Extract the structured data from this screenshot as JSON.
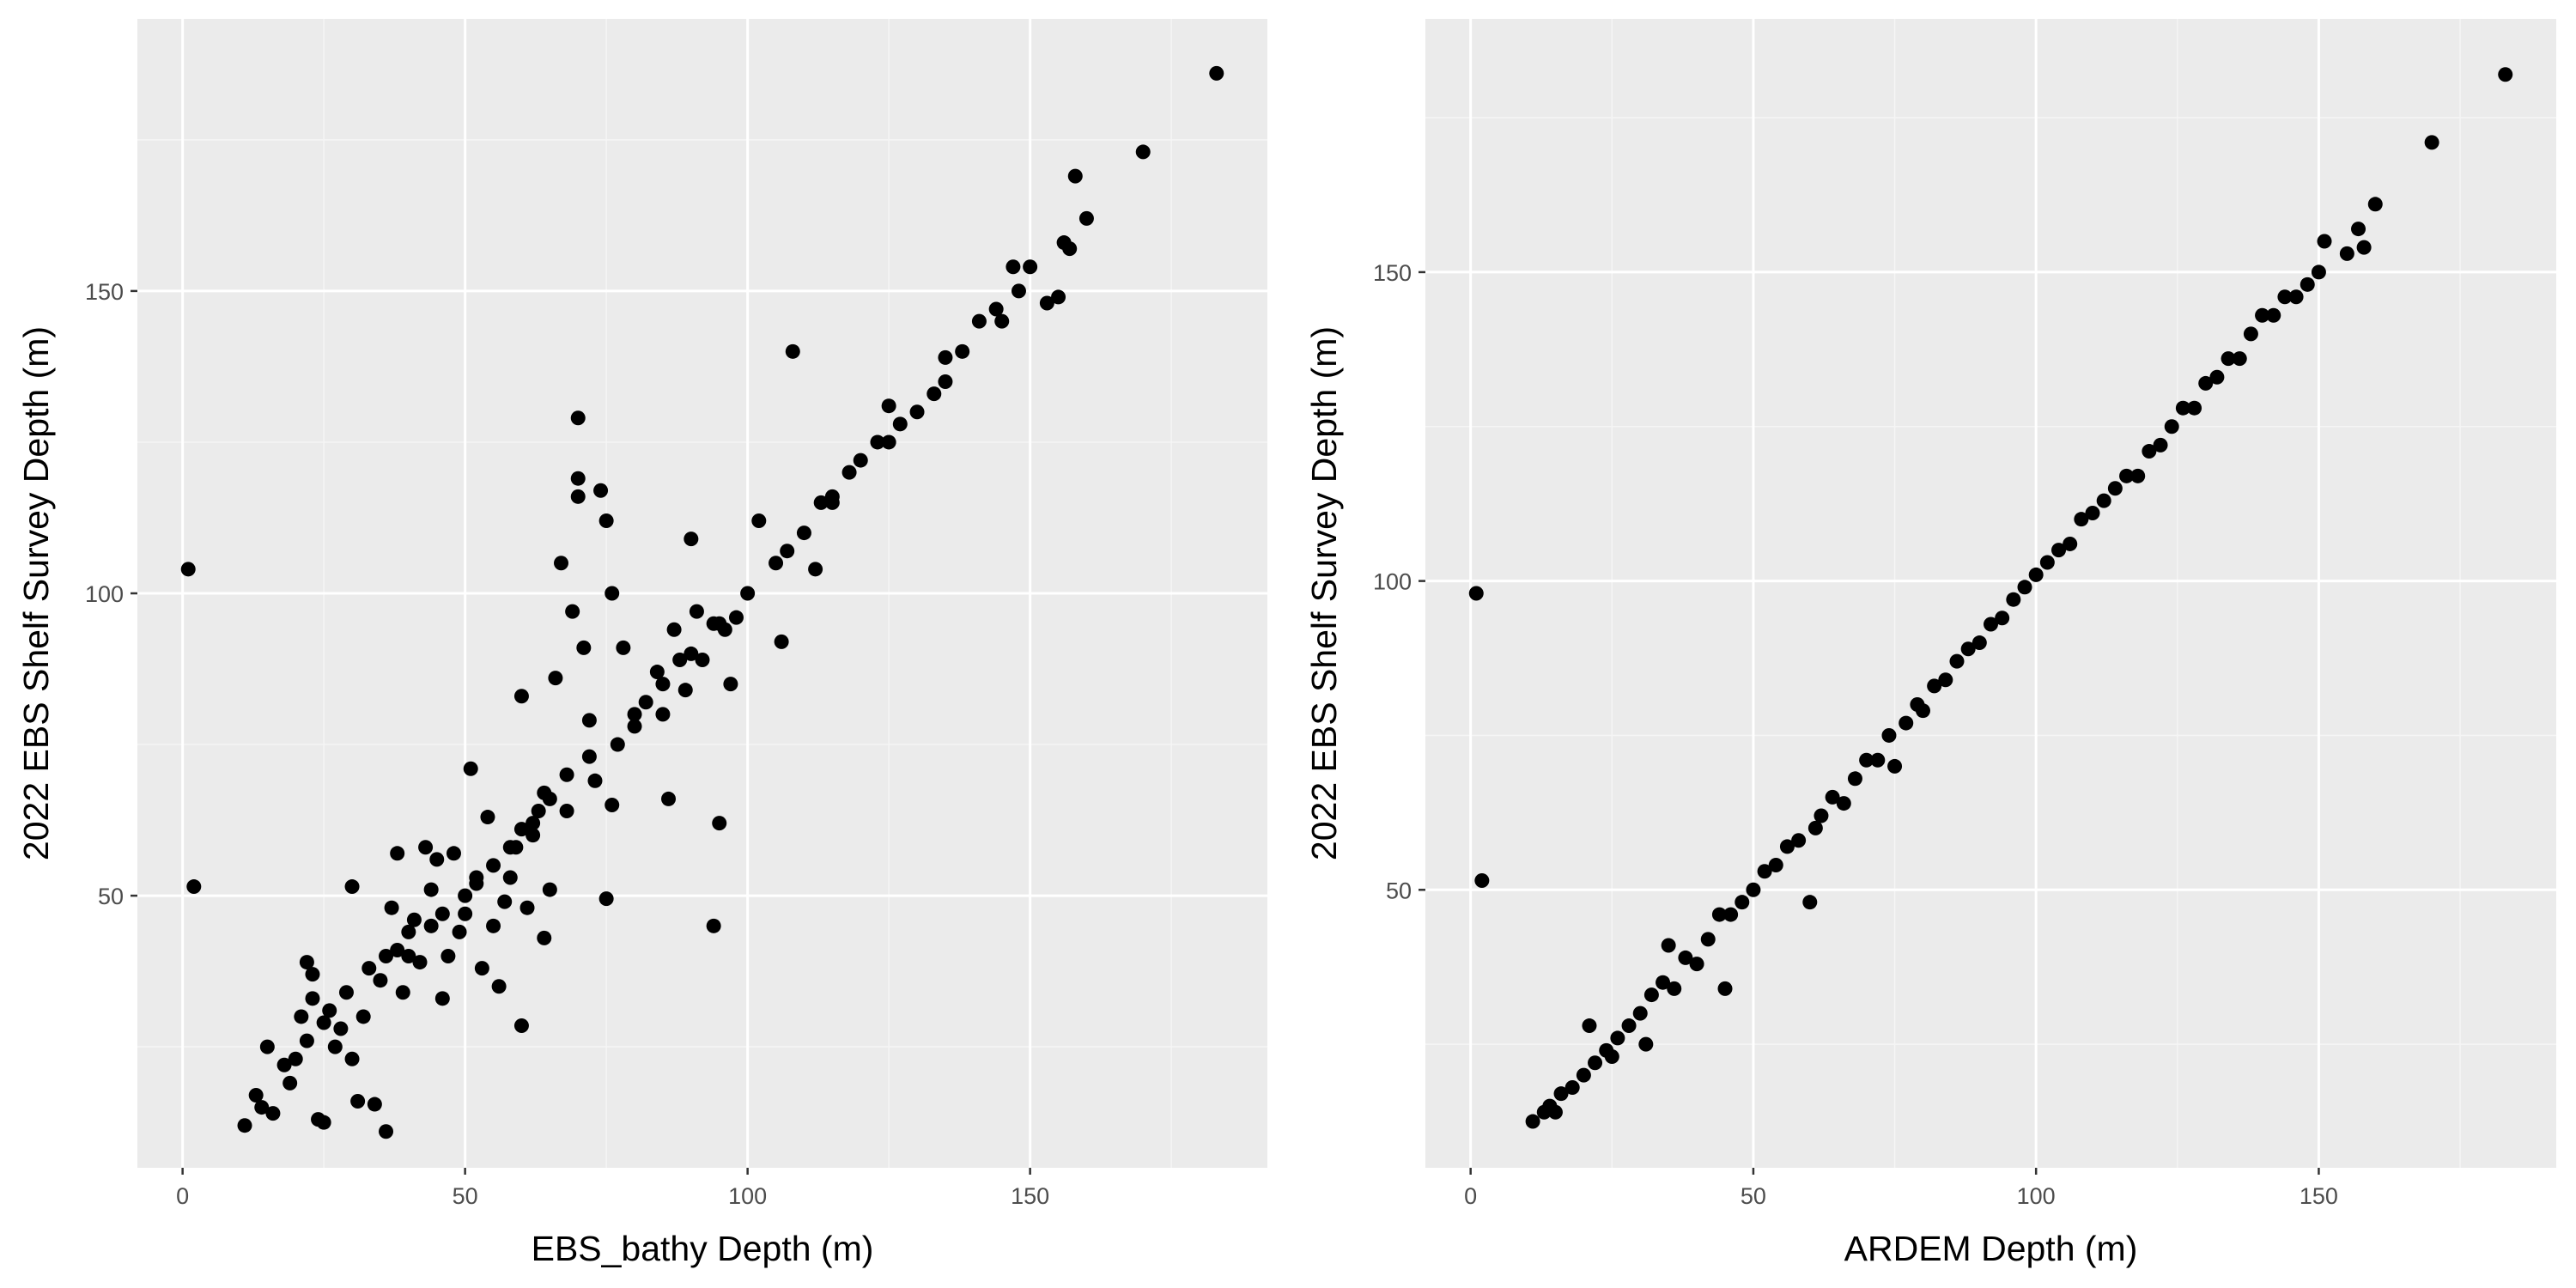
{
  "colors": {
    "panel_bg": "#EBEBEB",
    "grid_major": "#FFFFFF",
    "grid_minor": "#F5F5F5",
    "point": "#000000",
    "tick_text": "#4D4D4D",
    "axis_title": "#000000"
  },
  "chart_data": [
    {
      "type": "scatter",
      "title": "",
      "xlabel": "EBS_bathy Depth (m)",
      "ylabel": "2022 EBS Shelf Survey Depth (m)",
      "xlim": [
        -8,
        192
      ],
      "ylim": [
        5,
        195
      ],
      "x_ticks": [
        0,
        50,
        100,
        150
      ],
      "x_tick_labels": [
        "0",
        "50",
        "100",
        "150"
      ],
      "y_ticks": [
        50,
        100,
        150
      ],
      "y_tick_labels": [
        "50",
        "100",
        "150"
      ],
      "grid": true,
      "legend": "none",
      "series": [
        {
          "points": [
            [
              1,
              104
            ],
            [
              2,
              51.5
            ],
            [
              11,
              12
            ],
            [
              13,
              17
            ],
            [
              14,
              15
            ],
            [
              15,
              25
            ],
            [
              16,
              14
            ],
            [
              18,
              22
            ],
            [
              19,
              19
            ],
            [
              20,
              23
            ],
            [
              21,
              30
            ],
            [
              22,
              39
            ],
            [
              22,
              26
            ],
            [
              23,
              37
            ],
            [
              23,
              33
            ],
            [
              24,
              13
            ],
            [
              25,
              12.5
            ],
            [
              25,
              29
            ],
            [
              26,
              31
            ],
            [
              27,
              25
            ],
            [
              28,
              28
            ],
            [
              29,
              34
            ],
            [
              30,
              23
            ],
            [
              30,
              51.5
            ],
            [
              31,
              16
            ],
            [
              32,
              30
            ],
            [
              33,
              38
            ],
            [
              34,
              15.5
            ],
            [
              35,
              36
            ],
            [
              36,
              11
            ],
            [
              37,
              48
            ],
            [
              38,
              41
            ],
            [
              38,
              57
            ],
            [
              39,
              34
            ],
            [
              40,
              44
            ],
            [
              41,
              46
            ],
            [
              42,
              39
            ],
            [
              43,
              58
            ],
            [
              44,
              51
            ],
            [
              45,
              56
            ],
            [
              46,
              33
            ],
            [
              47,
              40
            ],
            [
              48,
              57
            ],
            [
              49,
              44
            ],
            [
              50,
              47
            ],
            [
              51,
              71
            ],
            [
              52,
              52
            ],
            [
              53,
              38
            ],
            [
              54,
              63
            ],
            [
              55,
              45
            ],
            [
              56,
              35
            ],
            [
              57,
              49
            ],
            [
              58,
              53
            ],
            [
              59,
              58
            ],
            [
              60,
              28.5
            ],
            [
              60,
              83
            ],
            [
              61,
              48
            ],
            [
              62,
              60
            ],
            [
              63,
              64
            ],
            [
              64,
              67
            ],
            [
              64,
              43
            ],
            [
              65,
              51
            ],
            [
              66,
              86
            ],
            [
              67,
              105
            ],
            [
              68,
              64
            ],
            [
              69,
              97
            ],
            [
              70,
              129
            ],
            [
              70,
              119
            ],
            [
              70,
              116
            ],
            [
              71,
              91
            ],
            [
              72,
              79
            ],
            [
              73,
              69
            ],
            [
              74,
              117
            ],
            [
              75,
              112
            ],
            [
              75,
              49.5
            ],
            [
              76,
              65
            ],
            [
              76,
              100
            ],
            [
              77,
              75
            ],
            [
              78,
              91
            ],
            [
              80,
              78
            ],
            [
              82,
              82
            ],
            [
              84,
              87
            ],
            [
              85,
              80
            ],
            [
              86,
              66
            ],
            [
              87,
              94
            ],
            [
              88,
              89
            ],
            [
              89,
              84
            ],
            [
              90,
              109
            ],
            [
              91,
              97
            ],
            [
              92,
              89
            ],
            [
              94,
              45
            ],
            [
              94,
              95
            ],
            [
              95,
              62
            ],
            [
              96,
              94
            ],
            [
              97,
              85
            ],
            [
              98,
              96
            ],
            [
              100,
              100
            ],
            [
              102,
              112
            ],
            [
              106,
              92
            ],
            [
              107,
              107
            ],
            [
              108,
              140
            ],
            [
              110,
              110
            ],
            [
              112,
              104
            ],
            [
              113,
              115
            ],
            [
              115,
              116
            ],
            [
              118,
              120
            ],
            [
              120,
              122
            ],
            [
              123,
              125
            ],
            [
              125,
              131
            ],
            [
              127,
              128
            ],
            [
              130,
              130
            ],
            [
              133,
              133
            ],
            [
              135,
              139
            ],
            [
              138,
              140
            ],
            [
              141,
              145
            ],
            [
              144,
              147
            ],
            [
              147,
              154
            ],
            [
              148,
              150
            ],
            [
              150,
              154
            ],
            [
              153,
              148
            ],
            [
              155,
              149
            ],
            [
              156,
              158
            ],
            [
              157,
              157
            ],
            [
              158,
              169
            ],
            [
              160,
              162
            ],
            [
              170,
              173
            ],
            [
              183,
              186
            ],
            [
              36,
              40
            ],
            [
              40,
              40
            ],
            [
              44,
              45
            ],
            [
              46,
              47
            ],
            [
              50,
              50
            ],
            [
              52,
              53
            ],
            [
              55,
              55
            ],
            [
              58,
              58
            ],
            [
              60,
              61
            ],
            [
              62,
              62
            ],
            [
              65,
              66
            ],
            [
              68,
              70
            ],
            [
              72,
              73
            ],
            [
              80,
              80
            ],
            [
              85,
              85
            ],
            [
              90,
              90
            ],
            [
              95,
              95
            ],
            [
              105,
              105
            ],
            [
              115,
              115
            ],
            [
              125,
              125
            ],
            [
              135,
              135
            ],
            [
              145,
              145
            ]
          ]
        }
      ]
    },
    {
      "type": "scatter",
      "title": "",
      "xlabel": "ARDEM Depth (m)",
      "ylabel": "2022 EBS Shelf Survey Depth (m)",
      "xlim": [
        -8,
        192
      ],
      "ylim": [
        5,
        191
      ],
      "x_ticks": [
        0,
        50,
        100,
        150
      ],
      "x_tick_labels": [
        "0",
        "50",
        "100",
        "150"
      ],
      "y_ticks": [
        50,
        100,
        150
      ],
      "y_tick_labels": [
        "50",
        "100",
        "150"
      ],
      "grid": true,
      "legend": "none",
      "series": [
        {
          "points": [
            [
              1,
              98
            ],
            [
              2,
              51.5
            ],
            [
              11,
              12.5
            ],
            [
              13,
              14
            ],
            [
              14,
              15
            ],
            [
              15,
              14
            ],
            [
              16,
              17
            ],
            [
              18,
              18
            ],
            [
              20,
              20
            ],
            [
              21,
              28
            ],
            [
              22,
              22
            ],
            [
              24,
              24
            ],
            [
              25,
              23
            ],
            [
              26,
              26
            ],
            [
              28,
              28
            ],
            [
              30,
              30
            ],
            [
              31,
              25
            ],
            [
              32,
              33
            ],
            [
              34,
              35
            ],
            [
              35,
              41
            ],
            [
              36,
              34
            ],
            [
              38,
              39
            ],
            [
              40,
              38
            ],
            [
              42,
              42
            ],
            [
              44,
              46
            ],
            [
              45,
              34
            ],
            [
              46,
              46
            ],
            [
              48,
              48
            ],
            [
              50,
              50
            ],
            [
              52,
              53
            ],
            [
              54,
              54
            ],
            [
              56,
              57
            ],
            [
              58,
              58
            ],
            [
              60,
              48
            ],
            [
              61,
              60
            ],
            [
              62,
              62
            ],
            [
              64,
              65
            ],
            [
              66,
              64
            ],
            [
              68,
              68
            ],
            [
              70,
              71
            ],
            [
              72,
              71
            ],
            [
              74,
              75
            ],
            [
              75,
              70
            ],
            [
              77,
              77
            ],
            [
              79,
              80
            ],
            [
              80,
              79
            ],
            [
              82,
              83
            ],
            [
              84,
              84
            ],
            [
              86,
              87
            ],
            [
              88,
              89
            ],
            [
              90,
              90
            ],
            [
              92,
              93
            ],
            [
              94,
              94
            ],
            [
              96,
              97
            ],
            [
              98,
              99
            ],
            [
              100,
              101
            ],
            [
              102,
              103
            ],
            [
              104,
              105
            ],
            [
              106,
              106
            ],
            [
              108,
              110
            ],
            [
              110,
              111
            ],
            [
              112,
              113
            ],
            [
              114,
              115
            ],
            [
              116,
              117
            ],
            [
              118,
              117
            ],
            [
              120,
              121
            ],
            [
              122,
              122
            ],
            [
              124,
              125
            ],
            [
              126,
              128
            ],
            [
              128,
              128
            ],
            [
              130,
              132
            ],
            [
              132,
              133
            ],
            [
              134,
              136
            ],
            [
              136,
              136
            ],
            [
              138,
              140
            ],
            [
              140,
              143
            ],
            [
              142,
              143
            ],
            [
              144,
              146
            ],
            [
              146,
              146
            ],
            [
              148,
              148
            ],
            [
              150,
              150
            ],
            [
              151,
              155
            ],
            [
              155,
              153
            ],
            [
              157,
              157
            ],
            [
              158,
              154
            ],
            [
              160,
              161
            ],
            [
              170,
              171
            ],
            [
              183,
              182
            ]
          ]
        }
      ]
    }
  ]
}
